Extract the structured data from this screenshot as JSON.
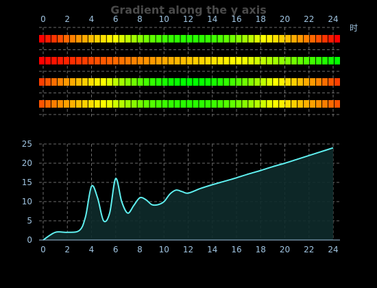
{
  "chart_data": [
    {
      "type": "heatmap",
      "title": "Gradient along the y axis",
      "x_unit_label": "时",
      "x_ticks": [
        "0",
        "2",
        "4",
        "6",
        "8",
        "10",
        "12",
        "14",
        "16",
        "18",
        "20",
        "22",
        "24"
      ],
      "x_range": [
        0,
        24
      ],
      "rows": 4,
      "cells_per_row": 49,
      "grid": true,
      "color_scale": [
        "#ff0000",
        "#ff8c00",
        "#ffff00",
        "#00ff00"
      ]
    },
    {
      "type": "area",
      "x_ticks": [
        "0",
        "2",
        "4",
        "6",
        "8",
        "10",
        "12",
        "14",
        "16",
        "18",
        "20",
        "22",
        "24"
      ],
      "y_ticks": [
        "0",
        "5",
        "10",
        "15",
        "20",
        "25"
      ],
      "xlim": [
        0,
        24
      ],
      "ylim": [
        0,
        25
      ],
      "grid": true,
      "line_color": "#5ff0f0",
      "fill_color": "#0e2b2b",
      "x": [
        0,
        1,
        2,
        3,
        3.5,
        4,
        4.5,
        5,
        5.5,
        6,
        6.5,
        7,
        7.5,
        8,
        8.5,
        9,
        9.5,
        10,
        10.5,
        11,
        11.5,
        12,
        13,
        14,
        15,
        16,
        17,
        18,
        19,
        20,
        21,
        22,
        23,
        24
      ],
      "y": [
        0,
        2,
        2,
        2.5,
        6,
        14,
        11,
        5,
        7,
        16,
        10,
        7,
        9,
        11,
        10.5,
        9.2,
        9.2,
        10,
        12,
        13,
        12.6,
        12.2,
        13.4,
        14.4,
        15.3,
        16.2,
        17.2,
        18.1,
        19.1,
        20,
        21,
        22,
        23,
        24
      ]
    }
  ]
}
